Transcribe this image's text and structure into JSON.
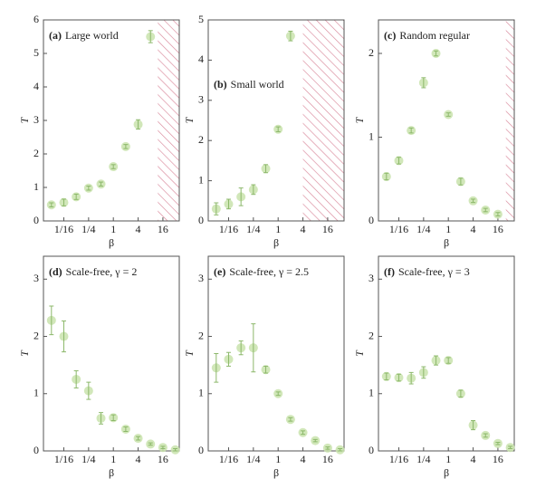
{
  "chart_data": [
    {
      "type": "scatter",
      "label": "(a)",
      "title": "Large world",
      "xlabel": "β",
      "ylabel": "T",
      "xscale": "log",
      "x": [
        0.03125,
        0.0625,
        0.125,
        0.25,
        0.5,
        1,
        2,
        4,
        8
      ],
      "values": [
        0.48,
        0.55,
        0.72,
        0.98,
        1.1,
        1.62,
        2.22,
        2.88,
        5.5
      ],
      "errors": [
        0.06,
        0.1,
        0.08,
        0.06,
        0.06,
        0.06,
        0.06,
        0.14,
        0.18
      ],
      "xlim": [
        0.02,
        40
      ],
      "ylim": [
        0,
        6
      ],
      "xticks": [
        {
          "value": 0.0625,
          "label": "1/16"
        },
        {
          "value": 0.25,
          "label": "1/4"
        },
        1,
        4,
        16
      ],
      "yticks": [
        0,
        1,
        2,
        3,
        4,
        5,
        6
      ],
      "hatch_from": 12,
      "color": "#c9e3ad",
      "error_color": "#8cb86a",
      "hatch_color": "#d9899b"
    },
    {
      "type": "scatter",
      "label": "(b)",
      "title": "Small world",
      "xlabel": "β",
      "ylabel": "T",
      "xscale": "log",
      "x": [
        0.03125,
        0.0625,
        0.125,
        0.25,
        0.5,
        1,
        2
      ],
      "values": [
        0.3,
        0.42,
        0.6,
        0.78,
        1.3,
        2.28,
        4.6
      ],
      "errors": [
        0.15,
        0.12,
        0.22,
        0.12,
        0.1,
        0.06,
        0.12
      ],
      "xlim": [
        0.02,
        40
      ],
      "ylim": [
        0,
        5
      ],
      "xticks": [
        {
          "value": 0.0625,
          "label": "1/16"
        },
        {
          "value": 0.25,
          "label": "1/4"
        },
        1,
        4,
        16
      ],
      "yticks": [
        0,
        1,
        2,
        3,
        4,
        5
      ],
      "hatch_from": 4,
      "color": "#c9e3ad",
      "error_color": "#8cb86a",
      "hatch_color": "#d9899b"
    },
    {
      "type": "scatter",
      "label": "(c)",
      "title": "Random regular",
      "xlabel": "β",
      "ylabel": "T",
      "xscale": "log",
      "x": [
        0.03125,
        0.0625,
        0.125,
        0.25,
        0.5,
        1,
        2,
        4,
        8,
        16
      ],
      "values": [
        0.53,
        0.72,
        1.08,
        1.65,
        2.0,
        1.27,
        0.47,
        0.24,
        0.13,
        0.08
      ],
      "errors": [
        0.04,
        0.04,
        0.03,
        0.06,
        0.03,
        0.02,
        0.04,
        0.02,
        0.02,
        0.02
      ],
      "xlim": [
        0.02,
        40
      ],
      "ylim": [
        0,
        2.4
      ],
      "xticks": [
        {
          "value": 0.0625,
          "label": "1/16"
        },
        {
          "value": 0.25,
          "label": "1/4"
        },
        1,
        4,
        16
      ],
      "yticks": [
        0,
        1,
        2
      ],
      "hatch_from": 25,
      "color": "#c9e3ad",
      "error_color": "#8cb86a",
      "hatch_color": "#d9899b"
    },
    {
      "type": "scatter",
      "label": "(d)",
      "title": "Scale-free, γ = 2",
      "xlabel": "β",
      "ylabel": "T",
      "xscale": "log",
      "x": [
        0.03125,
        0.0625,
        0.125,
        0.25,
        0.5,
        1,
        2,
        4,
        8,
        16,
        32
      ],
      "values": [
        2.28,
        2.0,
        1.25,
        1.05,
        0.57,
        0.58,
        0.38,
        0.22,
        0.12,
        0.06,
        0.02
      ],
      "errors": [
        0.25,
        0.27,
        0.15,
        0.15,
        0.1,
        0.05,
        0.04,
        0.03,
        0.02,
        0.02,
        0.02
      ],
      "xlim": [
        0.02,
        40
      ],
      "ylim": [
        0,
        3.4
      ],
      "xticks": [
        {
          "value": 0.0625,
          "label": "1/16"
        },
        {
          "value": 0.25,
          "label": "1/4"
        },
        1,
        4,
        16
      ],
      "yticks": [
        0,
        1,
        2,
        3
      ],
      "color": "#c9e3ad",
      "error_color": "#8cb86a"
    },
    {
      "type": "scatter",
      "label": "(e)",
      "title": "Scale-free, γ = 2.5",
      "xlabel": "β",
      "ylabel": "T",
      "xscale": "log",
      "x": [
        0.03125,
        0.0625,
        0.125,
        0.25,
        0.5,
        1,
        2,
        4,
        8,
        16,
        32
      ],
      "values": [
        1.45,
        1.6,
        1.8,
        1.8,
        1.42,
        1.0,
        0.55,
        0.32,
        0.18,
        0.05,
        0.02
      ],
      "errors": [
        0.25,
        0.12,
        0.12,
        0.42,
        0.06,
        0.03,
        0.03,
        0.03,
        0.02,
        0.02,
        0.02
      ],
      "xlim": [
        0.02,
        40
      ],
      "ylim": [
        0,
        3.4
      ],
      "xticks": [
        {
          "value": 0.0625,
          "label": "1/16"
        },
        {
          "value": 0.25,
          "label": "1/4"
        },
        1,
        4,
        16
      ],
      "yticks": [
        0,
        1,
        2,
        3
      ],
      "color": "#c9e3ad",
      "error_color": "#8cb86a"
    },
    {
      "type": "scatter",
      "label": "(f)",
      "title": "Scale-free, γ = 3",
      "xlabel": "β",
      "ylabel": "T",
      "xscale": "log",
      "x": [
        0.03125,
        0.0625,
        0.125,
        0.25,
        0.5,
        1,
        2,
        4,
        8,
        16,
        32
      ],
      "values": [
        1.3,
        1.28,
        1.27,
        1.37,
        1.58,
        1.58,
        1.0,
        0.45,
        0.27,
        0.13,
        0.06
      ],
      "errors": [
        0.06,
        0.06,
        0.1,
        0.1,
        0.08,
        0.05,
        0.06,
        0.08,
        0.03,
        0.02,
        0.02
      ],
      "xlim": [
        0.02,
        40
      ],
      "ylim": [
        0,
        3.4
      ],
      "xticks": [
        {
          "value": 0.0625,
          "label": "1/16"
        },
        {
          "value": 0.25,
          "label": "1/4"
        },
        1,
        4,
        16
      ],
      "yticks": [
        0,
        1,
        2,
        3
      ],
      "color": "#c9e3ad",
      "error_color": "#8cb86a"
    }
  ]
}
